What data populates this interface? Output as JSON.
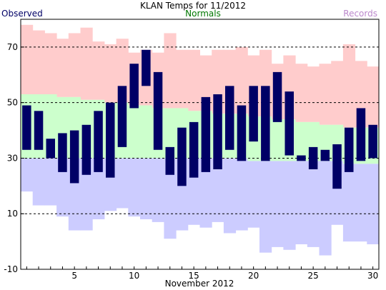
{
  "header": {
    "title": "KLAN Temps for 11/2012",
    "observed_label": "Observed",
    "normals_label": "Normals",
    "records_label": "Records"
  },
  "colors": {
    "observed": "#000066",
    "normals": "#ccffcc",
    "record_high": "#ffcccc",
    "record_low": "#ccccff",
    "normals_text": "#007700",
    "records_text": "#bb88cc",
    "observed_text": "#000066"
  },
  "chart_data": {
    "type": "bar",
    "xlabel": "November 2012",
    "ylabel": "",
    "xlim": [
      0.5,
      30.5
    ],
    "ylim": [
      -10,
      80
    ],
    "x_ticks": [
      5,
      10,
      15,
      20,
      25,
      30
    ],
    "y_ticks": [
      -10,
      10,
      30,
      50,
      70
    ],
    "grid": "dashed horizontal at 10, 30, 50, 70",
    "days": [
      1,
      2,
      3,
      4,
      5,
      6,
      7,
      8,
      9,
      10,
      11,
      12,
      13,
      14,
      15,
      16,
      17,
      18,
      19,
      20,
      21,
      22,
      23,
      24,
      25,
      26,
      27,
      28,
      29,
      30
    ],
    "series": [
      {
        "name": "Observed",
        "high": [
          49,
          47,
          37,
          39,
          40,
          42,
          47,
          50,
          56,
          64,
          69,
          61,
          34,
          41,
          43,
          52,
          53,
          56,
          49,
          56,
          56,
          61,
          54,
          31,
          34,
          33,
          35,
          41,
          48,
          42
        ],
        "low": [
          33,
          33,
          30,
          25,
          21,
          24,
          25,
          23,
          34,
          48,
          56,
          33,
          24,
          20,
          23,
          25,
          26,
          33,
          29,
          36,
          29,
          43,
          31,
          29,
          26,
          29,
          19,
          25,
          29,
          30
        ]
      },
      {
        "name": "Normals",
        "high": [
          53,
          53,
          53,
          52,
          52,
          51,
          51,
          50,
          50,
          49,
          49,
          48,
          48,
          48,
          47,
          47,
          46,
          46,
          46,
          45,
          45,
          44,
          44,
          43,
          43,
          42,
          42,
          41,
          41,
          41
        ],
        "low": [
          30,
          30,
          30,
          30,
          30,
          30,
          30,
          30,
          30,
          30,
          30,
          30,
          30,
          30,
          30,
          30,
          30,
          30,
          30,
          29,
          29,
          29,
          29,
          29,
          29,
          29,
          29,
          28,
          28,
          28
        ]
      },
      {
        "name": "Records",
        "high": [
          78,
          76,
          75,
          73,
          75,
          77,
          72,
          71,
          73,
          68,
          69,
          68,
          75,
          69,
          69,
          67,
          69,
          69,
          70,
          67,
          69,
          64,
          67,
          64,
          63,
          64,
          65,
          71,
          65,
          63
        ],
        "low": [
          18,
          13,
          13,
          9,
          4,
          4,
          8,
          11,
          12,
          9,
          8,
          7,
          1,
          4,
          6,
          5,
          7,
          3,
          4,
          5,
          -4,
          -2,
          -3,
          -1,
          -2,
          -5,
          6,
          0,
          0,
          -1
        ]
      }
    ]
  }
}
